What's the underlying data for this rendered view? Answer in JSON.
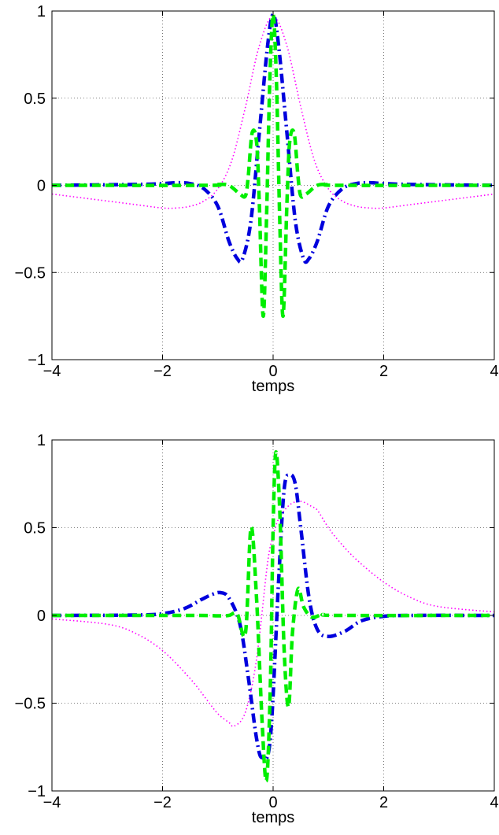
{
  "chart_data": [
    {
      "type": "line",
      "title": "",
      "xlabel": "temps",
      "ylabel": "",
      "xlim": [
        -4,
        4
      ],
      "ylim": [
        -1,
        1
      ],
      "xticks": [
        -4,
        -2,
        0,
        2,
        4
      ],
      "yticks": [
        -1,
        -0.5,
        0,
        0.5,
        1
      ],
      "xtick_labels": [
        "−4",
        "−2",
        "0",
        "2",
        "4"
      ],
      "ytick_labels": [
        "−1",
        "−0.5",
        "0",
        "0.5",
        "1"
      ],
      "grid": true,
      "series": [
        {
          "color": "#ff00ff",
          "style": "dotted",
          "x": [
            -4,
            -3,
            -2.5,
            -2,
            -1.75,
            -1.5,
            -1.25,
            -1,
            -0.75,
            -0.5,
            -0.25,
            0,
            0.25,
            0.5,
            0.75,
            1,
            1.25,
            1.5,
            1.75,
            2,
            2.5,
            3,
            4
          ],
          "y": [
            -0.05,
            -0.09,
            -0.11,
            -0.13,
            -0.13,
            -0.12,
            -0.09,
            -0.02,
            0.14,
            0.45,
            0.8,
            0.97,
            0.8,
            0.45,
            0.14,
            -0.02,
            -0.09,
            -0.12,
            -0.13,
            -0.13,
            -0.11,
            -0.09,
            -0.05
          ]
        },
        {
          "color": "#0000dd",
          "style": "dashdot",
          "x": [
            -4,
            -2.5,
            -2,
            -1.75,
            -1.5,
            -1.25,
            -1,
            -0.8,
            -0.65,
            -0.55,
            -0.4,
            -0.25,
            -0.1,
            0,
            0.1,
            0.25,
            0.4,
            0.55,
            0.65,
            0.8,
            1,
            1.25,
            1.5,
            1.75,
            2,
            2.5,
            4
          ],
          "y": [
            0,
            0.005,
            0.01,
            0.015,
            0.01,
            -0.02,
            -0.12,
            -0.32,
            -0.42,
            -0.42,
            -0.2,
            0.3,
            0.8,
            0.98,
            0.8,
            0.3,
            -0.2,
            -0.42,
            -0.42,
            -0.32,
            -0.12,
            -0.02,
            0.01,
            0.015,
            0.01,
            0.005,
            0
          ]
        },
        {
          "color": "#00ee00",
          "style": "dashed",
          "x": [
            -4,
            -1.2,
            -1,
            -0.8,
            -0.6,
            -0.5,
            -0.45,
            -0.38,
            -0.3,
            -0.25,
            -0.18,
            -0.12,
            -0.06,
            0,
            0.06,
            0.12,
            0.18,
            0.25,
            0.3,
            0.38,
            0.45,
            0.5,
            0.6,
            0.8,
            1,
            1.2,
            4
          ],
          "y": [
            0,
            0,
            0.005,
            0,
            -0.05,
            -0.06,
            0.05,
            0.3,
            0.25,
            -0.1,
            -0.75,
            -0.2,
            0.6,
            0.98,
            0.6,
            -0.2,
            -0.75,
            -0.1,
            0.25,
            0.3,
            0.05,
            -0.06,
            -0.05,
            0,
            0.005,
            0,
            0
          ]
        }
      ]
    },
    {
      "type": "line",
      "title": "",
      "xlabel": "temps",
      "ylabel": "",
      "xlim": [
        -4,
        4
      ],
      "ylim": [
        -1,
        1
      ],
      "xticks": [
        -4,
        -2,
        0,
        2,
        4
      ],
      "yticks": [
        -1,
        -0.5,
        0,
        0.5,
        1
      ],
      "xtick_labels": [
        "−4",
        "−2",
        "0",
        "2",
        "4"
      ],
      "ytick_labels": [
        "−1",
        "−0.5",
        "0",
        "0.5",
        "1"
      ],
      "grid": true,
      "series": [
        {
          "color": "#ff00ff",
          "style": "dotted",
          "x": [
            -4,
            -3,
            -2.5,
            -2,
            -1.5,
            -1.2,
            -1,
            -0.8,
            -0.7,
            -0.5,
            -0.3,
            -0.1,
            0,
            0.1,
            0.3,
            0.5,
            0.7,
            0.8,
            1,
            1.2,
            1.5,
            2,
            2.5,
            3,
            4
          ],
          "y": [
            -0.02,
            -0.05,
            -0.1,
            -0.2,
            -0.36,
            -0.48,
            -0.56,
            -0.61,
            -0.63,
            -0.55,
            -0.25,
            0.3,
            0.45,
            0.55,
            0.63,
            0.65,
            0.62,
            0.6,
            0.5,
            0.42,
            0.32,
            0.19,
            0.1,
            0.05,
            0.02
          ]
        },
        {
          "color": "#0000dd",
          "style": "dashdot",
          "x": [
            -4,
            -2.5,
            -2,
            -1.6,
            -1.3,
            -1.1,
            -0.95,
            -0.8,
            -0.6,
            -0.45,
            -0.3,
            -0.2,
            -0.05,
            0.1,
            0.2,
            0.3,
            0.4,
            0.5,
            0.65,
            0.8,
            1,
            1.3,
            1.6,
            2,
            2.5,
            4
          ],
          "y": [
            0,
            0.002,
            0.01,
            0.04,
            0.09,
            0.12,
            0.13,
            0.1,
            -0.05,
            -0.35,
            -0.7,
            -0.81,
            -0.7,
            0.2,
            0.72,
            0.8,
            0.75,
            0.5,
            0.1,
            -0.08,
            -0.12,
            -0.09,
            -0.03,
            -0.005,
            0,
            0
          ]
        },
        {
          "color": "#00ee00",
          "style": "dashed",
          "x": [
            -4,
            -1.5,
            -1,
            -0.8,
            -0.65,
            -0.5,
            -0.4,
            -0.3,
            -0.2,
            -0.12,
            -0.05,
            0,
            0.05,
            0.12,
            0.2,
            0.28,
            0.35,
            0.45,
            0.55,
            0.7,
            0.9,
            1.2,
            4
          ],
          "y": [
            0,
            0,
            -0.002,
            0,
            0.01,
            -0.1,
            0.5,
            0.1,
            -0.6,
            -0.94,
            -0.4,
            0.5,
            0.93,
            0.6,
            -0.2,
            -0.52,
            -0.1,
            0.15,
            0.05,
            -0.01,
            0.005,
            0,
            0
          ]
        }
      ]
    }
  ]
}
